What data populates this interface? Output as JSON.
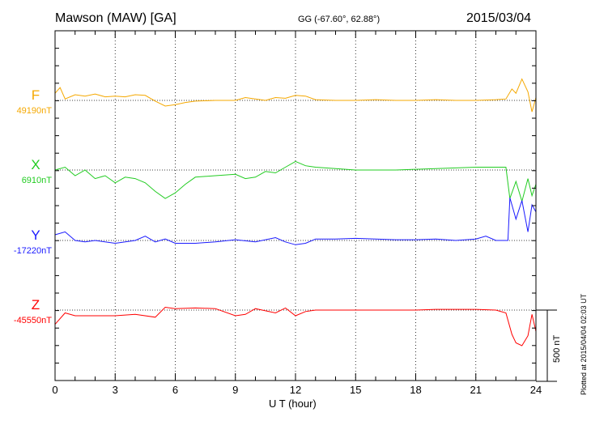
{
  "header": {
    "station": "Mawson (MAW)  [GA]",
    "coords": "GG (-67.60°,  62.88°)",
    "date": "2015/03/04"
  },
  "footer_note": "Plotted at 2015/04/04 02:03 UT",
  "chart_data": {
    "type": "line",
    "xlabel": "U T (hour)",
    "xlim": [
      0,
      24
    ],
    "xticks": [
      "0",
      "3",
      "6",
      "9",
      "12",
      "15",
      "18",
      "21",
      "24"
    ],
    "scale_bar_label": "500 nT",
    "grid": "dotted vertical lines every 3 hours",
    "series": [
      {
        "name": "F",
        "baseline_label": "49190nT",
        "color": "#f5a800",
        "unit": "nT (deviation from baseline)",
        "points": [
          [
            0,
            50
          ],
          [
            0.25,
            90
          ],
          [
            0.5,
            10
          ],
          [
            1,
            40
          ],
          [
            1.5,
            30
          ],
          [
            2,
            45
          ],
          [
            2.5,
            25
          ],
          [
            3,
            30
          ],
          [
            3.5,
            25
          ],
          [
            4,
            40
          ],
          [
            4.5,
            35
          ],
          [
            5,
            -5
          ],
          [
            5.5,
            -40
          ],
          [
            6,
            -30
          ],
          [
            6.5,
            -15
          ],
          [
            7,
            -5
          ],
          [
            8,
            0
          ],
          [
            9,
            0
          ],
          [
            9.5,
            20
          ],
          [
            10,
            10
          ],
          [
            10.5,
            0
          ],
          [
            11,
            20
          ],
          [
            11.5,
            15
          ],
          [
            12,
            35
          ],
          [
            12.5,
            30
          ],
          [
            13,
            5
          ],
          [
            14,
            0
          ],
          [
            15,
            0
          ],
          [
            16,
            5
          ],
          [
            17,
            0
          ],
          [
            18,
            0
          ],
          [
            19,
            5
          ],
          [
            20,
            0
          ],
          [
            21,
            0
          ],
          [
            22,
            5
          ],
          [
            22.5,
            10
          ],
          [
            22.8,
            80
          ],
          [
            23,
            50
          ],
          [
            23.3,
            150
          ],
          [
            23.6,
            60
          ],
          [
            23.8,
            -80
          ],
          [
            24,
            20
          ]
        ]
      },
      {
        "name": "X",
        "baseline_label": "6910nT",
        "color": "#22cc22",
        "unit": "nT (deviation from baseline)",
        "points": [
          [
            0,
            0
          ],
          [
            0.5,
            20
          ],
          [
            1,
            -40
          ],
          [
            1.5,
            0
          ],
          [
            2,
            -60
          ],
          [
            2.5,
            -40
          ],
          [
            3,
            -90
          ],
          [
            3.5,
            -50
          ],
          [
            4,
            -60
          ],
          [
            4.5,
            -90
          ],
          [
            5,
            -150
          ],
          [
            5.5,
            -200
          ],
          [
            6,
            -160
          ],
          [
            6.5,
            -100
          ],
          [
            7,
            -50
          ],
          [
            8,
            -40
          ],
          [
            9,
            -30
          ],
          [
            9.5,
            -60
          ],
          [
            10,
            -50
          ],
          [
            10.5,
            -10
          ],
          [
            11,
            -20
          ],
          [
            11.5,
            20
          ],
          [
            12,
            60
          ],
          [
            12.5,
            30
          ],
          [
            13,
            20
          ],
          [
            14,
            10
          ],
          [
            15,
            0
          ],
          [
            16,
            0
          ],
          [
            17,
            0
          ],
          [
            18,
            5
          ],
          [
            19,
            10
          ],
          [
            20,
            15
          ],
          [
            21,
            20
          ],
          [
            22,
            20
          ],
          [
            22.5,
            20
          ],
          [
            22.7,
            -200
          ],
          [
            23,
            -80
          ],
          [
            23.3,
            -220
          ],
          [
            23.6,
            -60
          ],
          [
            23.8,
            -180
          ],
          [
            24,
            -100
          ]
        ]
      },
      {
        "name": "Y",
        "baseline_label": "-17220nT",
        "color": "#1a1aff",
        "unit": "nT (deviation from baseline)",
        "points": [
          [
            0,
            40
          ],
          [
            0.5,
            60
          ],
          [
            1,
            0
          ],
          [
            1.5,
            -10
          ],
          [
            2,
            0
          ],
          [
            3,
            -20
          ],
          [
            4,
            0
          ],
          [
            4.5,
            30
          ],
          [
            5,
            -10
          ],
          [
            5.5,
            10
          ],
          [
            6,
            -20
          ],
          [
            7,
            -20
          ],
          [
            8,
            -10
          ],
          [
            9,
            5
          ],
          [
            10,
            -10
          ],
          [
            11,
            20
          ],
          [
            11.5,
            -10
          ],
          [
            12,
            -30
          ],
          [
            12.5,
            -20
          ],
          [
            13,
            10
          ],
          [
            14,
            10
          ],
          [
            15,
            15
          ],
          [
            16,
            10
          ],
          [
            17,
            5
          ],
          [
            18,
            5
          ],
          [
            19,
            10
          ],
          [
            20,
            0
          ],
          [
            21,
            10
          ],
          [
            21.5,
            30
          ],
          [
            22,
            0
          ],
          [
            22.6,
            0
          ],
          [
            22.7,
            300
          ],
          [
            23,
            150
          ],
          [
            23.3,
            280
          ],
          [
            23.6,
            60
          ],
          [
            23.8,
            250
          ],
          [
            24,
            200
          ]
        ]
      },
      {
        "name": "Z",
        "baseline_label": "-45550nT",
        "color": "#ff0000",
        "unit": "nT (deviation from baseline)",
        "points": [
          [
            0,
            -100
          ],
          [
            0.5,
            -20
          ],
          [
            1,
            -40
          ],
          [
            2,
            -40
          ],
          [
            3,
            -40
          ],
          [
            4,
            -30
          ],
          [
            5,
            -50
          ],
          [
            5.5,
            20
          ],
          [
            6,
            10
          ],
          [
            7,
            15
          ],
          [
            8,
            10
          ],
          [
            9,
            -40
          ],
          [
            9.5,
            -30
          ],
          [
            10,
            10
          ],
          [
            11,
            -20
          ],
          [
            11.5,
            15
          ],
          [
            12,
            -40
          ],
          [
            12.5,
            -10
          ],
          [
            13,
            0
          ],
          [
            14,
            0
          ],
          [
            15,
            0
          ],
          [
            16,
            0
          ],
          [
            17,
            0
          ],
          [
            18,
            0
          ],
          [
            19,
            5
          ],
          [
            20,
            5
          ],
          [
            21,
            5
          ],
          [
            22,
            0
          ],
          [
            22.5,
            -20
          ],
          [
            22.8,
            -170
          ],
          [
            23,
            -230
          ],
          [
            23.3,
            -250
          ],
          [
            23.6,
            -180
          ],
          [
            23.8,
            -30
          ],
          [
            24,
            -150
          ]
        ]
      }
    ]
  },
  "colors": {
    "axis": "#000000",
    "grid": "#000000",
    "background": "#ffffff"
  }
}
